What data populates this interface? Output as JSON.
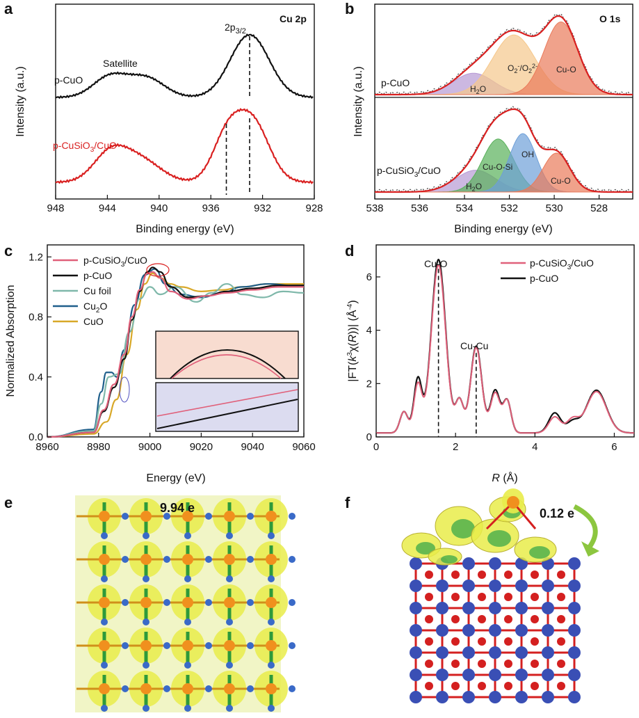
{
  "colors": {
    "black": "#111111",
    "red": "#d92020",
    "pink": "#e0607a",
    "teal": "#7fb8aa",
    "darkblue": "#1f5f8b",
    "gold": "#d8a828",
    "purple": "#b79ad4",
    "orange": "#f5c78b",
    "salmon": "#ea7a5a",
    "green": "#58b05a",
    "blue": "#6e9fd8",
    "atomBlue": "#3a4fb5",
    "atomRed": "#d42020",
    "atomOrange": "#f0901e",
    "iso": "#e9ec4a"
  },
  "panel_a": {
    "label": "a",
    "title": "Cu 2p",
    "peak_label_main": "2p",
    "peak_label_sub": "3/2",
    "satellite_label": "Satellite",
    "ylabel": "Intensity (a.u.)",
    "xlabel": "Binding energy (eV)",
    "xticks": [
      "948",
      "944",
      "940",
      "936",
      "932",
      "928"
    ]
  },
  "panel_b": {
    "label": "b",
    "title": "O 1s",
    "ylabel": "Intensity (a.u.)",
    "xlabel": "Binding energy (eV)",
    "xticks": [
      "538",
      "536",
      "534",
      "532",
      "530",
      "528"
    ],
    "top_sample": "p-CuO",
    "top_components": {
      "h2o": "H2O",
      "o2": "O2-/O22-",
      "cuo": "Cu-O"
    },
    "bottom_components": {
      "h2o": "H2O",
      "cuosi": "Cu-O-Si",
      "oh": "OH",
      "cuo": "Cu-O"
    }
  },
  "panel_c": {
    "label": "c",
    "ylabel": "Normalized Absorption",
    "xlabel": "Energy (eV)",
    "xticks": [
      "8960",
      "8980",
      "9000",
      "9020",
      "9040",
      "9060"
    ],
    "yticks": [
      "0.0",
      "0.4",
      "0.8",
      "1.2"
    ],
    "legend": [
      "p-CuSiO3/CuO",
      "p-CuO",
      "Cu foil",
      "Cu2O",
      "CuO"
    ]
  },
  "panel_d": {
    "label": "d",
    "xlabel_pre": "R",
    "xlabel_post": " (Å)",
    "xticks": [
      "0",
      "2",
      "4",
      "6"
    ],
    "yticks": [
      "0",
      "2",
      "4",
      "6"
    ],
    "peak1": "Cu-O",
    "peak2": "Cu-Cu",
    "legend": [
      "p-CuSiO3/CuO",
      "p-CuO"
    ]
  },
  "panel_e": {
    "label": "e",
    "charge": "9.94 e"
  },
  "panel_f": {
    "label": "f",
    "charge": "0.12 e"
  },
  "chart_data": [
    {
      "type": "line",
      "panel": "a",
      "title": "Cu 2p",
      "xlabel": "Binding energy (eV)",
      "ylabel": "Intensity (a.u.)",
      "xlim": [
        948,
        928
      ],
      "series": [
        {
          "name": "p-CuO",
          "peaks": [
            {
              "x": 943.8,
              "h": 0.33,
              "w": 1.3
            },
            {
              "x": 941.0,
              "h": 0.31,
              "w": 1.4
            },
            {
              "x": 933.0,
              "h": 1.0,
              "w": 1.5
            }
          ]
        },
        {
          "name": "p-CuSiO3/CuO",
          "peaks": [
            {
              "x": 943.8,
              "h": 0.36,
              "w": 1.3
            },
            {
              "x": 941.5,
              "h": 0.3,
              "w": 1.6
            },
            {
              "x": 934.8,
              "h": 0.55,
              "w": 1.1
            },
            {
              "x": 932.8,
              "h": 0.8,
              "w": 1.3
            }
          ]
        }
      ],
      "markers": [
        933.0,
        934.8,
        933.0
      ]
    },
    {
      "type": "area",
      "panel": "b",
      "title": "O 1s",
      "xlabel": "Binding energy (eV)",
      "ylabel": "Intensity (a.u.)",
      "xlim": [
        538,
        526.5
      ],
      "series": [
        {
          "name": "p-CuO H2O",
          "center": 533.6,
          "height": 0.28,
          "sigma": 0.9
        },
        {
          "name": "p-CuO O2-/O22-",
          "center": 531.8,
          "height": 0.78,
          "sigma": 0.95
        },
        {
          "name": "p-CuO Cu-O",
          "center": 529.7,
          "height": 0.95,
          "sigma": 0.75
        },
        {
          "name": "p-CuSiO3/CuO H2O",
          "center": 533.5,
          "height": 0.28,
          "sigma": 0.9
        },
        {
          "name": "p-CuSiO3/CuO Cu-O-Si",
          "center": 532.5,
          "height": 0.68,
          "sigma": 0.7
        },
        {
          "name": "p-CuSiO3/CuO OH",
          "center": 531.4,
          "height": 0.75,
          "sigma": 0.6
        },
        {
          "name": "p-CuSiO3/CuO Cu-O",
          "center": 529.9,
          "height": 0.5,
          "sigma": 0.6
        }
      ]
    },
    {
      "type": "line",
      "panel": "c",
      "xlabel": "Energy (eV)",
      "ylabel": "Normalized Absorption",
      "xlim": [
        8960,
        9060
      ],
      "ylim": [
        0,
        1.28
      ],
      "series": [
        {
          "name": "p-CuSiO3/CuO",
          "x": [
            8960,
            8978,
            8982,
            8986,
            8990,
            8993,
            8996,
            8999,
            9001,
            9004,
            9008,
            9015,
            9022,
            9030,
            9040,
            9050,
            9060
          ],
          "y": [
            0.0,
            0.03,
            0.18,
            0.35,
            0.55,
            0.8,
            0.98,
            1.09,
            1.1,
            1.06,
            0.97,
            0.92,
            0.94,
            0.96,
            0.98,
            1.0,
            1.0
          ]
        },
        {
          "name": "p-CuO",
          "x": [
            8960,
            8978,
            8982,
            8986,
            8990,
            8993,
            8996,
            8999,
            9001,
            9004,
            9008,
            9015,
            9022,
            9030,
            9040,
            9050,
            9060
          ],
          "y": [
            0.0,
            0.03,
            0.17,
            0.33,
            0.52,
            0.78,
            0.97,
            1.1,
            1.13,
            1.1,
            1.0,
            0.93,
            0.94,
            0.97,
            0.99,
            1.01,
            1.01
          ]
        },
        {
          "name": "Cu foil",
          "x": [
            8960,
            8978,
            8981,
            8984,
            8988,
            8992,
            8996,
            9000,
            9004,
            9010,
            9018,
            9024,
            9030,
            9036,
            9044,
            9052,
            9060
          ],
          "y": [
            0.0,
            0.04,
            0.22,
            0.4,
            0.42,
            0.7,
            0.92,
            1.0,
            0.95,
            1.0,
            0.9,
            0.96,
            1.02,
            0.95,
            0.93,
            0.97,
            0.96
          ]
        },
        {
          "name": "Cu2O",
          "x": [
            8960,
            8978,
            8981,
            8983,
            8985,
            8987,
            8990,
            8994,
            8998,
            9002,
            9006,
            9012,
            9020,
            9028,
            9036,
            9046,
            9060
          ],
          "y": [
            0.0,
            0.05,
            0.3,
            0.43,
            0.43,
            0.4,
            0.58,
            0.88,
            1.08,
            1.12,
            1.02,
            0.95,
            0.93,
            0.96,
            1.0,
            1.02,
            1.0
          ]
        },
        {
          "name": "CuO",
          "x": [
            8960,
            8978,
            8983,
            8987,
            8991,
            8995,
            8998,
            9001,
            9004,
            9008,
            9012,
            9020,
            9028,
            9036,
            9046,
            9060
          ],
          "y": [
            0.0,
            0.02,
            0.1,
            0.25,
            0.55,
            0.85,
            1.02,
            1.09,
            1.06,
            1.02,
            1.0,
            0.97,
            0.98,
            1.0,
            1.02,
            1.02
          ]
        }
      ]
    },
    {
      "type": "line",
      "panel": "d",
      "xlabel": "R (Å)",
      "ylabel": "|FT(k3χ(R))| (Å-4)",
      "xlim": [
        0,
        6.5
      ],
      "ylim": [
        0,
        7.2
      ],
      "series": [
        {
          "name": "p-CuSiO3/CuO",
          "peaks": [
            {
              "x": 0.7,
              "h": 0.8,
              "w": 0.1
            },
            {
              "x": 1.05,
              "h": 1.8,
              "w": 0.1
            },
            {
              "x": 1.57,
              "h": 6.3,
              "w": 0.18
            },
            {
              "x": 2.1,
              "h": 1.2,
              "w": 0.1
            },
            {
              "x": 2.52,
              "h": 3.2,
              "w": 0.14
            },
            {
              "x": 3.0,
              "h": 1.5,
              "w": 0.12
            },
            {
              "x": 3.3,
              "h": 1.2,
              "w": 0.1
            },
            {
              "x": 4.5,
              "h": 0.6,
              "w": 0.15
            },
            {
              "x": 4.95,
              "h": 0.5,
              "w": 0.15
            },
            {
              "x": 5.55,
              "h": 1.55,
              "w": 0.25
            }
          ]
        },
        {
          "name": "p-CuO",
          "peaks": [
            {
              "x": 0.7,
              "h": 0.8,
              "w": 0.1
            },
            {
              "x": 1.05,
              "h": 2.0,
              "w": 0.1
            },
            {
              "x": 1.57,
              "h": 6.5,
              "w": 0.18
            },
            {
              "x": 2.1,
              "h": 1.2,
              "w": 0.1
            },
            {
              "x": 2.52,
              "h": 3.25,
              "w": 0.14
            },
            {
              "x": 3.0,
              "h": 1.6,
              "w": 0.12
            },
            {
              "x": 3.3,
              "h": 1.2,
              "w": 0.1
            },
            {
              "x": 4.5,
              "h": 0.75,
              "w": 0.15
            },
            {
              "x": 4.95,
              "h": 0.4,
              "w": 0.15
            },
            {
              "x": 5.55,
              "h": 1.6,
              "w": 0.25
            }
          ]
        }
      ],
      "markers": [
        1.57,
        2.52
      ]
    }
  ]
}
